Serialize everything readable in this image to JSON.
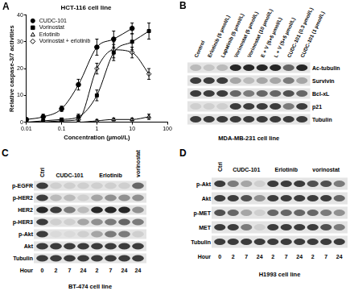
{
  "chart_data": {
    "panel": "A",
    "type": "line",
    "title": "HCT-116 cell line",
    "x_label": "Concentration (µmol/L)",
    "y_label": "Relative caspase-3/7 activities",
    "log": "x",
    "xlim": [
      0.01,
      100
    ],
    "xticks": [
      0.01,
      0.1,
      1,
      10,
      100
    ],
    "ylim": [
      0,
      40
    ],
    "yticks": [
      0,
      10,
      20,
      30,
      40
    ],
    "grid": false,
    "legend": "top left",
    "series": [
      {
        "name": "CUDC-101",
        "color": "#000000",
        "marker": "circle",
        "x": [
          0.01,
          0.03,
          0.1,
          0.3,
          1,
          3,
          10
        ],
        "values": [
          1,
          2,
          5,
          14,
          28,
          31,
          35
        ],
        "errors": [
          0.5,
          1,
          1,
          2,
          3,
          3,
          2
        ]
      },
      {
        "name": "Vorinostat",
        "color": "#000000",
        "marker": "square",
        "x": [
          0.01,
          0.03,
          0.1,
          0.3,
          1,
          3,
          10,
          30
        ],
        "values": [
          0,
          0.5,
          1,
          2,
          10,
          26,
          30,
          34
        ],
        "errors": [
          0.5,
          0.5,
          0.5,
          1,
          2,
          3,
          3,
          3
        ]
      },
      {
        "name": "Erlotinib",
        "color": "#000000",
        "marker": "triangle-open",
        "x": [
          0.01,
          0.03,
          0.1,
          0.3,
          1,
          3,
          10,
          30
        ],
        "values": [
          0,
          0,
          0,
          0,
          0.5,
          1,
          1,
          2
        ],
        "errors": [
          0.3,
          0.3,
          0.3,
          0.3,
          0.5,
          0.5,
          0.5,
          1
        ]
      },
      {
        "name": "Vorinostat + erlotinib",
        "color": "#000000",
        "marker": "diamond-open",
        "x": [
          0.03,
          0.1,
          0.3,
          1,
          3,
          10,
          30
        ],
        "values": [
          0,
          0.5,
          1,
          20,
          27,
          26,
          18
        ],
        "errors": [
          0.3,
          0.5,
          0.5,
          2,
          3,
          2,
          2
        ]
      }
    ]
  },
  "blots": [
    {
      "panel": "B",
      "caption": "MDA-MB-231 cell line",
      "lanes": [
        "Control",
        "Erlotinib (5 µmol/L)",
        "Lapatinib (5 µmol/L)",
        "Vorinostat (5 µmol/L)",
        "Vorinostat (10 µmol/L)",
        "E + V (5+5 µmol/L)",
        "L + V (5+5 µmol/L)",
        "CUDC-101 (0.3 µmol/L)",
        "CUDC-101 (1 µmol/L)"
      ],
      "rows": [
        {
          "label": "Ac-tubulin",
          "bands": [
            0.2,
            0.15,
            0.2,
            0.9,
            0.9,
            0.9,
            0.9,
            0.6,
            0.9
          ]
        },
        {
          "label": "Survivin",
          "bands": [
            0.8,
            0.8,
            0.8,
            0.3,
            0.2,
            0.3,
            0.3,
            0.5,
            0.3
          ]
        },
        {
          "label": "Bcl-xL",
          "bands": [
            0.8,
            0.8,
            0.8,
            0.6,
            0.5,
            0.6,
            0.6,
            0.7,
            0.6
          ]
        },
        {
          "label": "p21",
          "bands": [
            0.1,
            0.1,
            0.1,
            0.8,
            0.8,
            0.8,
            0.8,
            0.5,
            0.8
          ]
        },
        {
          "label": "Tubulin",
          "bands": [
            0.8,
            0.8,
            0.8,
            0.8,
            0.8,
            0.8,
            0.8,
            0.8,
            0.8
          ]
        }
      ]
    },
    {
      "panel": "C",
      "caption": "BT-474 cell line",
      "groups": [
        {
          "label": "Ctrl",
          "lanes": 1
        },
        {
          "label": "CUDC-101",
          "lanes": 3
        },
        {
          "label": "Erlotinib",
          "lanes": 3
        },
        {
          "label": "vorinostat",
          "lanes": 1
        }
      ],
      "hour_label": "Hour",
      "hours": [
        0,
        2,
        7,
        24,
        2,
        7,
        24,
        24
      ],
      "rows": [
        {
          "label": "p-EGFR",
          "bands": [
            0.8,
            0.1,
            0.1,
            0.1,
            0.1,
            0.1,
            0.1,
            0.6
          ]
        },
        {
          "label": "p-HER2",
          "bands": [
            0.8,
            0.2,
            0.2,
            0.1,
            0.3,
            0.4,
            0.4,
            0.4
          ]
        },
        {
          "label": "HER2",
          "bands": [
            0.9,
            0.8,
            0.5,
            0.2,
            0.9,
            0.9,
            0.9,
            0.4
          ]
        },
        {
          "label": "p-HER3",
          "bands": [
            0.8,
            0.1,
            0.1,
            0.3,
            0.4,
            0.5,
            0.6,
            0.5
          ]
        },
        {
          "label": "p-Akt",
          "bands": [
            0.8,
            0.05,
            0.05,
            0.1,
            0.3,
            0.5,
            0.5,
            0.1
          ]
        },
        {
          "label": "Akt",
          "bands": [
            0.8,
            0.8,
            0.8,
            0.8,
            0.8,
            0.8,
            0.8,
            0.8
          ]
        },
        {
          "label": "Tubulin",
          "bands": [
            0.8,
            0.8,
            0.8,
            0.8,
            0.8,
            0.8,
            0.8,
            0.8
          ]
        }
      ]
    },
    {
      "panel": "D",
      "caption": "H1993 cell line",
      "groups": [
        {
          "label": "Ctrl",
          "lanes": 1
        },
        {
          "label": "CUDC-101",
          "lanes": 3
        },
        {
          "label": "Erlotinib",
          "lanes": 3
        },
        {
          "label": "vorinostat",
          "lanes": 3
        }
      ],
      "hour_label": "Hour",
      "hours": [
        0,
        2,
        7,
        24,
        2,
        7,
        24,
        2,
        7,
        24
      ],
      "rows": [
        {
          "label": "p-Akt",
          "bands": [
            0.8,
            0.5,
            0.3,
            0.1,
            0.8,
            0.8,
            0.8,
            0.7,
            0.7,
            0.5
          ]
        },
        {
          "label": "Akt",
          "bands": [
            0.8,
            0.8,
            0.7,
            0.4,
            0.8,
            0.8,
            0.8,
            0.8,
            0.8,
            0.6
          ]
        },
        {
          "label": "p-MET",
          "bands": [
            0.7,
            0.6,
            0.3,
            0.1,
            0.6,
            0.6,
            0.6,
            0.6,
            0.5,
            0.4
          ]
        },
        {
          "label": "MET",
          "bands": [
            0.8,
            0.8,
            0.5,
            0.1,
            0.8,
            0.8,
            0.8,
            0.8,
            0.7,
            0.5
          ]
        },
        {
          "label": "Tubulin",
          "bands": [
            0.8,
            0.8,
            0.8,
            0.8,
            0.8,
            0.8,
            0.8,
            0.8,
            0.8,
            0.8
          ]
        }
      ]
    }
  ]
}
